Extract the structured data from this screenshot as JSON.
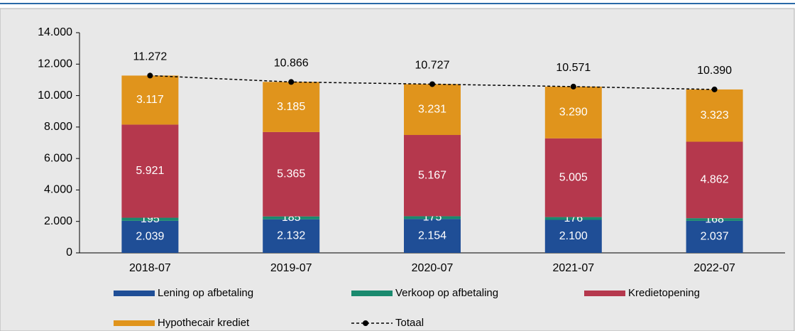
{
  "chart_data": {
    "type": "bar",
    "categories": [
      "2018-07",
      "2019-07",
      "2020-07",
      "2021-07",
      "2022-07"
    ],
    "series": [
      {
        "name": "Lening op afbetaling",
        "color": "#1f4e96",
        "values": [
          2039,
          2132,
          2154,
          2100,
          2037
        ],
        "value_labels": [
          "2.039",
          "2.132",
          "2.154",
          "2.100",
          "2.037"
        ]
      },
      {
        "name": "Verkoop op afbetaling",
        "color": "#1a8a6e",
        "values": [
          195,
          185,
          175,
          176,
          168
        ]
      },
      {
        "name": "Kredietopening",
        "color": "#b5384d",
        "values": [
          5921,
          5365,
          5167,
          5005,
          4862
        ],
        "value_labels": [
          "5.921",
          "5.365",
          "5.167",
          "5.005",
          "4.862"
        ]
      },
      {
        "name": "Hypothecair krediet",
        "color": "#e0941c",
        "values": [
          3117,
          3185,
          3231,
          3290,
          3323
        ],
        "value_labels": [
          "3.117",
          "3.185",
          "3.231",
          "3.290",
          "3.323"
        ]
      },
      {
        "name": "Totaal",
        "color": "#000000",
        "type": "line",
        "values": [
          11272,
          10866,
          10727,
          10571,
          10390
        ],
        "value_labels": [
          "11.272",
          "10.866",
          "10.727",
          "10.571",
          "10.390"
        ]
      }
    ],
    "stacked": true,
    "ylim": [
      0,
      14000
    ],
    "yticks": [
      0,
      {
        "value": 2000,
        "label": "2.000"
      },
      {
        "value": 4000,
        "label": "4.000"
      },
      {
        "value": 6000,
        "label": "6.000"
      },
      {
        "value": 8000,
        "label": "8.000"
      },
      {
        "value": 10000,
        "label": "10.000"
      },
      {
        "value": 12000,
        "label": "12.000"
      },
      {
        "value": 14000,
        "label": "14.000"
      }
    ],
    "legend": "bottom"
  }
}
